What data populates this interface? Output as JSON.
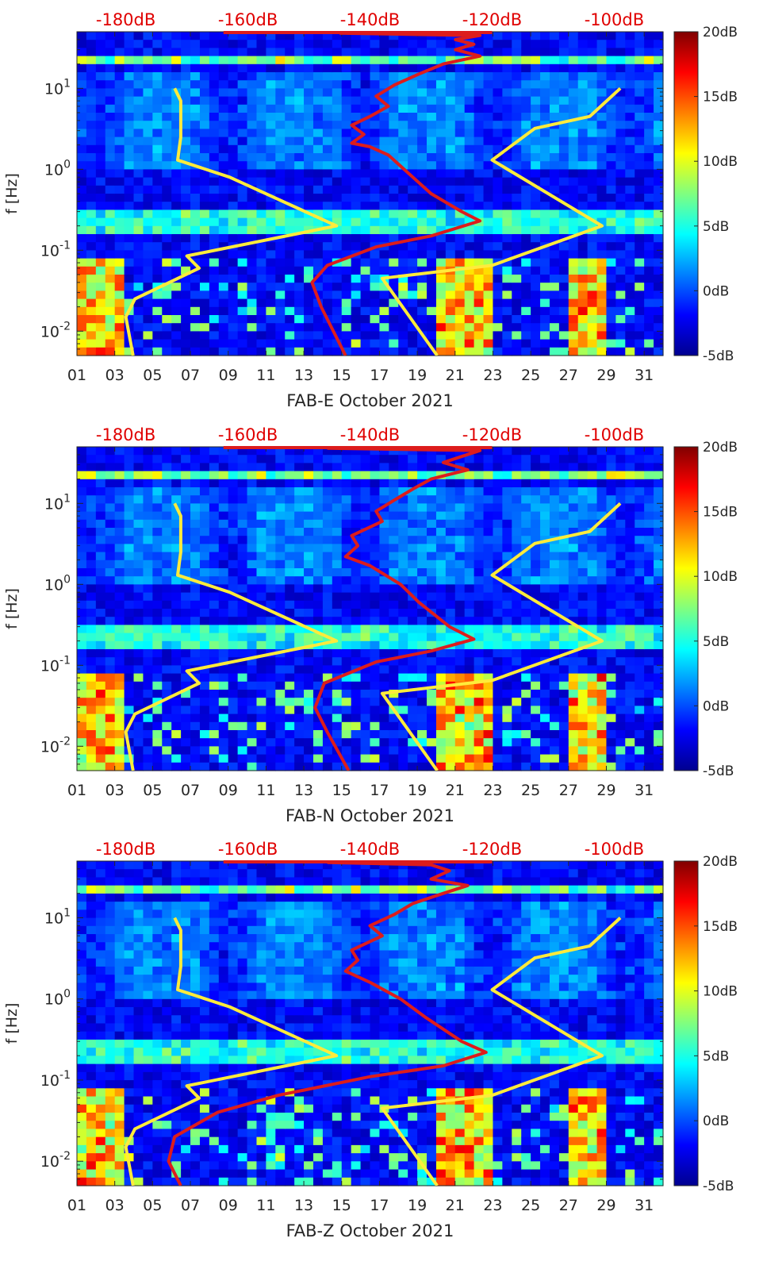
{
  "chart_data": [
    {
      "type": "heatmap",
      "xlabel": "FAB-E October 2021",
      "ylabel": "f [Hz]",
      "x_tick_labels": [
        "01",
        "03",
        "05",
        "07",
        "09",
        "11",
        "13",
        "15",
        "17",
        "19",
        "21",
        "23",
        "25",
        "27",
        "29",
        "31"
      ],
      "xlim": [
        1,
        32
      ],
      "yscale": "log",
      "ylim": [
        0.005,
        50
      ],
      "y_tick_labels": [
        "10^-2",
        "10^-1",
        "10^0",
        "10^1"
      ],
      "top_axis_labels": [
        "-180dB",
        "-160dB",
        "-140dB",
        "-120dB",
        "-100dB"
      ],
      "top_axis_values": [
        -180,
        -160,
        -140,
        -120,
        -100
      ],
      "top_axis_range": [
        -188,
        -92
      ],
      "colorbar": {
        "labels": [
          "20dB",
          "15dB",
          "10dB",
          "5dB",
          "0dB",
          "-5dB"
        ],
        "values": [
          20,
          15,
          10,
          5,
          0,
          -5
        ],
        "range": [
          -5,
          20
        ],
        "colormap": "jet"
      },
      "series": [
        {
          "color": "#ffeb3b",
          "axis": "top_db",
          "points": [
            [
              -178.8,
              0.005
            ],
            [
              -180,
              0.015
            ],
            [
              -178.5,
              0.025
            ],
            [
              -168,
              0.06
            ],
            [
              -170,
              0.085
            ],
            [
              -145.5,
              0.2
            ],
            [
              -163,
              0.8
            ],
            [
              -171.5,
              1.3
            ],
            [
              -171,
              2.5
            ],
            [
              -171,
              7
            ],
            [
              -172,
              10
            ]
          ]
        },
        {
          "color": "#ffeb3b",
          "axis": "top_db",
          "points": [
            [
              -129,
              0.005
            ],
            [
              -138,
              0.045
            ],
            [
              -120,
              0.065
            ],
            [
              -102,
              0.2
            ],
            [
              -120,
              1.3
            ],
            [
              -113,
              3.2
            ],
            [
              -104,
              4.5
            ],
            [
              -99,
              10
            ]
          ]
        },
        {
          "color": "#dd1c1c",
          "axis": "top_db",
          "points": [
            [
              -144,
              0.005
            ],
            [
              -148,
              0.02
            ],
            [
              -149.5,
              0.04
            ],
            [
              -147,
              0.065
            ],
            [
              -139,
              0.11
            ],
            [
              -130,
              0.15
            ],
            [
              -122,
              0.23
            ],
            [
              -125,
              0.3
            ],
            [
              -130,
              0.5
            ],
            [
              -133,
              0.8
            ],
            [
              -137,
              1.5
            ],
            [
              -140,
              1.9
            ],
            [
              -143,
              2.1
            ],
            [
              -141,
              2.7
            ],
            [
              -143,
              3.5
            ],
            [
              -140,
              4.5
            ],
            [
              -137,
              6
            ],
            [
              -139,
              8
            ],
            [
              -136,
              11
            ],
            [
              -132,
              15
            ],
            [
              -128,
              20
            ],
            [
              -122,
              25
            ],
            [
              -126,
              30
            ],
            [
              -123,
              35
            ],
            [
              -126,
              40
            ],
            [
              -122,
              45
            ],
            [
              -145,
              48
            ]
          ]
        }
      ]
    },
    {
      "type": "heatmap",
      "xlabel": "FAB-N October 2021",
      "ylabel": "f [Hz]",
      "x_tick_labels": [
        "01",
        "03",
        "05",
        "07",
        "09",
        "11",
        "13",
        "15",
        "17",
        "19",
        "21",
        "23",
        "25",
        "27",
        "29",
        "31"
      ],
      "xlim": [
        1,
        32
      ],
      "yscale": "log",
      "ylim": [
        0.005,
        50
      ],
      "y_tick_labels": [
        "10^-2",
        "10^-1",
        "10^0",
        "10^1"
      ],
      "top_axis_labels": [
        "-180dB",
        "-160dB",
        "-140dB",
        "-120dB",
        "-100dB"
      ],
      "top_axis_values": [
        -180,
        -160,
        -140,
        -120,
        -100
      ],
      "top_axis_range": [
        -188,
        -92
      ],
      "colorbar": {
        "labels": [
          "20dB",
          "15dB",
          "10dB",
          "5dB",
          "0dB",
          "-5dB"
        ],
        "values": [
          20,
          15,
          10,
          5,
          0,
          -5
        ],
        "range": [
          -5,
          20
        ],
        "colormap": "jet"
      },
      "series": [
        {
          "color": "#ffeb3b",
          "axis": "top_db",
          "points": [
            [
              -178.8,
              0.005
            ],
            [
              -180,
              0.015
            ],
            [
              -178.5,
              0.025
            ],
            [
              -168,
              0.06
            ],
            [
              -170,
              0.085
            ],
            [
              -145.5,
              0.2
            ],
            [
              -163,
              0.8
            ],
            [
              -171.5,
              1.3
            ],
            [
              -171,
              2.5
            ],
            [
              -171,
              7
            ],
            [
              -172,
              10
            ]
          ]
        },
        {
          "color": "#ffeb3b",
          "axis": "top_db",
          "points": [
            [
              -129,
              0.005
            ],
            [
              -138,
              0.045
            ],
            [
              -120,
              0.065
            ],
            [
              -102,
              0.2
            ],
            [
              -120,
              1.3
            ],
            [
              -113,
              3.2
            ],
            [
              -104,
              4.5
            ],
            [
              -99,
              10
            ]
          ]
        },
        {
          "color": "#dd1c1c",
          "axis": "top_db",
          "points": [
            [
              -143.5,
              0.005
            ],
            [
              -147,
              0.015
            ],
            [
              -149,
              0.03
            ],
            [
              -147.5,
              0.06
            ],
            [
              -139,
              0.11
            ],
            [
              -130,
              0.15
            ],
            [
              -123,
              0.21
            ],
            [
              -127,
              0.3
            ],
            [
              -132,
              0.6
            ],
            [
              -135,
              1
            ],
            [
              -140,
              1.7
            ],
            [
              -144,
              2.2
            ],
            [
              -142,
              3
            ],
            [
              -143,
              4
            ],
            [
              -138,
              6
            ],
            [
              -139,
              8
            ],
            [
              -136,
              11
            ],
            [
              -133,
              15
            ],
            [
              -130,
              20
            ],
            [
              -124,
              26
            ],
            [
              -128,
              32
            ],
            [
              -125,
              38
            ],
            [
              -122,
              45
            ],
            [
              -147,
              48
            ]
          ]
        }
      ]
    },
    {
      "type": "heatmap",
      "xlabel": "FAB-Z October 2021",
      "ylabel": "f [Hz]",
      "x_tick_labels": [
        "01",
        "03",
        "05",
        "07",
        "09",
        "11",
        "13",
        "15",
        "17",
        "19",
        "21",
        "23",
        "25",
        "27",
        "29",
        "31"
      ],
      "xlim": [
        1,
        32
      ],
      "yscale": "log",
      "ylim": [
        0.005,
        50
      ],
      "y_tick_labels": [
        "10^-2",
        "10^-1",
        "10^0",
        "10^1"
      ],
      "top_axis_labels": [
        "-180dB",
        "-160dB",
        "-140dB",
        "-120dB",
        "-100dB"
      ],
      "top_axis_values": [
        -180,
        -160,
        -140,
        -120,
        -100
      ],
      "top_axis_range": [
        -188,
        -92
      ],
      "colorbar": {
        "labels": [
          "20dB",
          "15dB",
          "10dB",
          "5dB",
          "0dB",
          "-5dB"
        ],
        "values": [
          20,
          15,
          10,
          5,
          0,
          -5
        ],
        "range": [
          -5,
          20
        ],
        "colormap": "jet"
      },
      "series": [
        {
          "color": "#ffeb3b",
          "axis": "top_db",
          "points": [
            [
              -178.8,
              0.005
            ],
            [
              -180,
              0.015
            ],
            [
              -178.5,
              0.025
            ],
            [
              -168,
              0.06
            ],
            [
              -170,
              0.085
            ],
            [
              -145.5,
              0.2
            ],
            [
              -163,
              0.8
            ],
            [
              -171.5,
              1.3
            ],
            [
              -171,
              2.5
            ],
            [
              -171,
              7
            ],
            [
              -172,
              10
            ]
          ]
        },
        {
          "color": "#ffeb3b",
          "axis": "top_db",
          "points": [
            [
              -129,
              0.005
            ],
            [
              -138,
              0.045
            ],
            [
              -120,
              0.065
            ],
            [
              -102,
              0.2
            ],
            [
              -120,
              1.3
            ],
            [
              -113,
              3.2
            ],
            [
              -104,
              4.5
            ],
            [
              -99,
              10
            ]
          ]
        },
        {
          "color": "#dd1c1c",
          "axis": "top_db",
          "points": [
            [
              -171,
              0.005
            ],
            [
              -173,
              0.01
            ],
            [
              -172,
              0.02
            ],
            [
              -165,
              0.04
            ],
            [
              -155,
              0.065
            ],
            [
              -140,
              0.11
            ],
            [
              -128,
              0.15
            ],
            [
              -121,
              0.22
            ],
            [
              -125,
              0.3
            ],
            [
              -131,
              0.6
            ],
            [
              -135,
              1
            ],
            [
              -140,
              1.6
            ],
            [
              -144,
              2.2
            ],
            [
              -142,
              3
            ],
            [
              -143,
              4
            ],
            [
              -138,
              6
            ],
            [
              -140,
              8
            ],
            [
              -136,
              11
            ],
            [
              -133,
              15
            ],
            [
              -128,
              20
            ],
            [
              -124,
              25
            ],
            [
              -130,
              30
            ],
            [
              -127,
              38
            ],
            [
              -130,
              45
            ],
            [
              -147,
              48
            ]
          ]
        }
      ]
    }
  ]
}
